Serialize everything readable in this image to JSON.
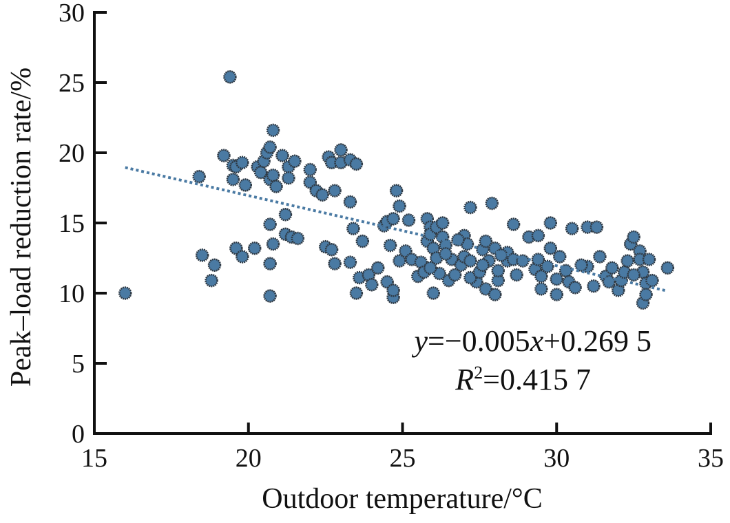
{
  "chart_data": {
    "type": "scatter",
    "title": "",
    "xlabel": "Outdoor temperature/°C",
    "ylabel": "Peak–load reduction rate/%",
    "xlim": [
      15,
      35
    ],
    "ylim": [
      0,
      30
    ],
    "xticks": [
      "15",
      "20",
      "25",
      "30",
      "35"
    ],
    "yticks": [
      "0",
      "5",
      "10",
      "15",
      "20",
      "25",
      "30"
    ],
    "grid": false,
    "colors": {
      "point": "#4a7aa3",
      "point_edge": "#2f3a45",
      "trendline": "#4a7aa3",
      "axis": "#111111"
    },
    "trendline": {
      "slope_pct_per_degC": -0.5,
      "intercept_pct": 26.95,
      "x_range": [
        16,
        33.6
      ],
      "equation": {
        "y_var": "y",
        "eq_part1": "=−0.005",
        "x_var": "x",
        "eq_part2": "+0.269 5"
      },
      "r_squared": {
        "r_var": "R",
        "sup": "2",
        "value": "=0.415 7"
      }
    },
    "points": [
      [
        16.0,
        10.0
      ],
      [
        19.4,
        25.4
      ],
      [
        18.4,
        18.3
      ],
      [
        18.5,
        12.7
      ],
      [
        18.9,
        12.0
      ],
      [
        18.8,
        10.9
      ],
      [
        19.2,
        19.8
      ],
      [
        19.5,
        18.1
      ],
      [
        19.6,
        13.2
      ],
      [
        19.8,
        12.6
      ],
      [
        19.5,
        19.1
      ],
      [
        19.6,
        19.0
      ],
      [
        19.8,
        19.3
      ],
      [
        19.9,
        17.7
      ],
      [
        20.2,
        13.2
      ],
      [
        20.3,
        19.0
      ],
      [
        20.4,
        18.6
      ],
      [
        20.5,
        19.4
      ],
      [
        20.6,
        20.0
      ],
      [
        20.7,
        20.4
      ],
      [
        20.7,
        18.1
      ],
      [
        20.7,
        14.9
      ],
      [
        20.7,
        12.1
      ],
      [
        20.7,
        9.8
      ],
      [
        20.8,
        21.6
      ],
      [
        20.8,
        18.4
      ],
      [
        20.9,
        17.6
      ],
      [
        20.8,
        13.5
      ],
      [
        21.1,
        19.8
      ],
      [
        21.3,
        19.0
      ],
      [
        21.3,
        18.2
      ],
      [
        21.2,
        15.6
      ],
      [
        21.2,
        14.2
      ],
      [
        21.4,
        14.0
      ],
      [
        21.5,
        19.4
      ],
      [
        21.6,
        13.9
      ],
      [
        22.0,
        18.8
      ],
      [
        22.0,
        17.9
      ],
      [
        22.2,
        17.3
      ],
      [
        22.4,
        17.0
      ],
      [
        22.5,
        13.3
      ],
      [
        22.6,
        19.7
      ],
      [
        22.7,
        13.1
      ],
      [
        22.7,
        19.3
      ],
      [
        22.8,
        12.1
      ],
      [
        22.8,
        17.3
      ],
      [
        23.0,
        20.2
      ],
      [
        23.0,
        19.3
      ],
      [
        23.3,
        19.5
      ],
      [
        23.5,
        19.2
      ],
      [
        23.3,
        16.5
      ],
      [
        23.3,
        12.2
      ],
      [
        23.5,
        10.0
      ],
      [
        23.4,
        14.6
      ],
      [
        23.6,
        11.1
      ],
      [
        23.7,
        13.7
      ],
      [
        23.9,
        11.3
      ],
      [
        24.0,
        10.6
      ],
      [
        24.2,
        11.8
      ],
      [
        24.4,
        14.8
      ],
      [
        24.5,
        15.1
      ],
      [
        24.8,
        17.3
      ],
      [
        24.9,
        16.2
      ],
      [
        24.7,
        15.3
      ],
      [
        24.5,
        10.8
      ],
      [
        24.7,
        9.7
      ],
      [
        24.7,
        10.2
      ],
      [
        24.9,
        12.3
      ],
      [
        24.6,
        13.4
      ],
      [
        25.1,
        13.0
      ],
      [
        25.2,
        15.2
      ],
      [
        25.3,
        12.4
      ],
      [
        25.6,
        12.2
      ],
      [
        25.5,
        11.2
      ],
      [
        25.7,
        11.5
      ],
      [
        25.8,
        13.7
      ],
      [
        25.8,
        15.3
      ],
      [
        25.9,
        14.7
      ],
      [
        25.9,
        14.2
      ],
      [
        26.0,
        13.2
      ],
      [
        26.0,
        10.0
      ],
      [
        26.1,
        12.5
      ],
      [
        26.2,
        11.4
      ],
      [
        26.1,
        14.7
      ],
      [
        26.3,
        14.0
      ],
      [
        26.3,
        15.0
      ],
      [
        26.4,
        13.4
      ],
      [
        26.6,
        12.4
      ],
      [
        26.5,
        10.9
      ],
      [
        26.7,
        11.3
      ],
      [
        26.9,
        12.0
      ],
      [
        27.0,
        12.6
      ],
      [
        27.0,
        14.1
      ],
      [
        27.2,
        12.3
      ],
      [
        27.4,
        10.8
      ],
      [
        27.2,
        11.1
      ],
      [
        27.1,
        13.5
      ],
      [
        27.2,
        16.1
      ],
      [
        27.5,
        11.5
      ],
      [
        27.6,
        13.1
      ],
      [
        27.7,
        13.7
      ],
      [
        27.7,
        10.3
      ],
      [
        27.8,
        12.3
      ],
      [
        27.9,
        16.4
      ],
      [
        28.0,
        13.2
      ],
      [
        28.1,
        10.9
      ],
      [
        28.0,
        9.9
      ],
      [
        28.1,
        11.6
      ],
      [
        28.4,
        12.3
      ],
      [
        28.4,
        12.9
      ],
      [
        28.6,
        12.4
      ],
      [
        28.7,
        11.3
      ],
      [
        28.9,
        12.3
      ],
      [
        29.1,
        14.0
      ],
      [
        29.4,
        14.1
      ],
      [
        29.3,
        11.7
      ],
      [
        29.4,
        12.4
      ],
      [
        29.5,
        11.2
      ],
      [
        29.5,
        10.3
      ],
      [
        29.7,
        11.9
      ],
      [
        29.8,
        13.2
      ],
      [
        30.0,
        9.9
      ],
      [
        30.0,
        11.0
      ],
      [
        30.1,
        12.6
      ],
      [
        30.3,
        11.6
      ],
      [
        30.4,
        10.8
      ],
      [
        30.6,
        10.4
      ],
      [
        30.5,
        14.6
      ],
      [
        31.0,
        11.9
      ],
      [
        31.2,
        10.5
      ],
      [
        31.0,
        14.7
      ],
      [
        31.3,
        14.7
      ],
      [
        31.4,
        12.6
      ],
      [
        31.6,
        11.2
      ],
      [
        31.7,
        10.8
      ],
      [
        31.8,
        11.8
      ],
      [
        32.0,
        10.2
      ],
      [
        32.1,
        10.9
      ],
      [
        32.2,
        11.5
      ],
      [
        32.3,
        12.3
      ],
      [
        32.4,
        13.5
      ],
      [
        32.5,
        14.0
      ],
      [
        32.7,
        13.0
      ],
      [
        32.7,
        12.4
      ],
      [
        32.8,
        11.5
      ],
      [
        32.9,
        10.7
      ],
      [
        32.5,
        11.3
      ],
      [
        32.8,
        9.3
      ],
      [
        32.9,
        9.9
      ],
      [
        33.0,
        12.4
      ],
      [
        33.1,
        10.9
      ],
      [
        33.6,
        11.8
      ],
      [
        29.8,
        15.0
      ],
      [
        28.6,
        14.9
      ],
      [
        26.8,
        13.8
      ],
      [
        27.6,
        12.0
      ],
      [
        28.2,
        12.7
      ],
      [
        26.4,
        12.8
      ],
      [
        25.9,
        11.8
      ],
      [
        30.8,
        12.0
      ]
    ]
  }
}
